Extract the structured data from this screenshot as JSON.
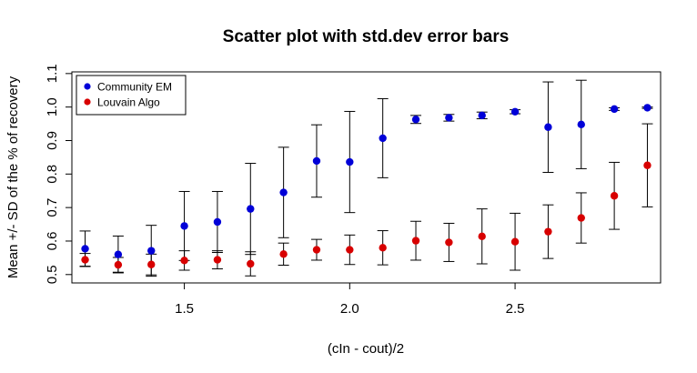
{
  "chart_data": {
    "type": "scatter",
    "title": "Scatter plot with std.dev error bars",
    "xlabel": "(cIn - cout)/2",
    "ylabel": "Mean +/- SD of the % of recovery",
    "xlim": [
      1.16,
      2.94
    ],
    "ylim": [
      0.475,
      1.105
    ],
    "x_ticks": [
      1.5,
      2.0,
      2.5
    ],
    "x_tick_labels": [
      "1.5",
      "2.0",
      "2.5"
    ],
    "y_ticks": [
      0.5,
      0.6,
      0.7,
      0.8,
      0.9,
      1.0,
      1.1
    ],
    "y_tick_labels": [
      "0.5",
      "0.6",
      "0.7",
      "0.8",
      "0.9",
      "1.0",
      "1.1"
    ],
    "grid": false,
    "legend_position": "top-left",
    "x": [
      1.2,
      1.3,
      1.4,
      1.5,
      1.6,
      1.7,
      1.8,
      1.9,
      2.0,
      2.1,
      2.2,
      2.3,
      2.4,
      2.5,
      2.6,
      2.7,
      2.8,
      2.9
    ],
    "series": [
      {
        "name": "Community EM",
        "color": "#0000d8",
        "values": [
          0.577,
          0.56,
          0.571,
          0.645,
          0.657,
          0.696,
          0.745,
          0.839,
          0.836,
          0.907,
          0.963,
          0.968,
          0.975,
          0.986,
          0.94,
          0.948,
          0.994,
          0.998
        ],
        "sd": [
          0.053,
          0.055,
          0.076,
          0.103,
          0.091,
          0.136,
          0.135,
          0.108,
          0.151,
          0.118,
          0.012,
          0.01,
          0.01,
          0.006,
          0.135,
          0.132,
          0.004,
          0.002
        ]
      },
      {
        "name": "Louvain Algo",
        "color": "#d80000",
        "values": [
          0.544,
          0.529,
          0.53,
          0.542,
          0.544,
          0.532,
          0.561,
          0.574,
          0.574,
          0.58,
          0.601,
          0.596,
          0.614,
          0.598,
          0.628,
          0.669,
          0.735,
          0.826
        ],
        "sd": [
          0.019,
          0.022,
          0.031,
          0.029,
          0.027,
          0.036,
          0.033,
          0.031,
          0.044,
          0.051,
          0.058,
          0.057,
          0.082,
          0.085,
          0.08,
          0.075,
          0.1,
          0.124
        ]
      }
    ]
  }
}
